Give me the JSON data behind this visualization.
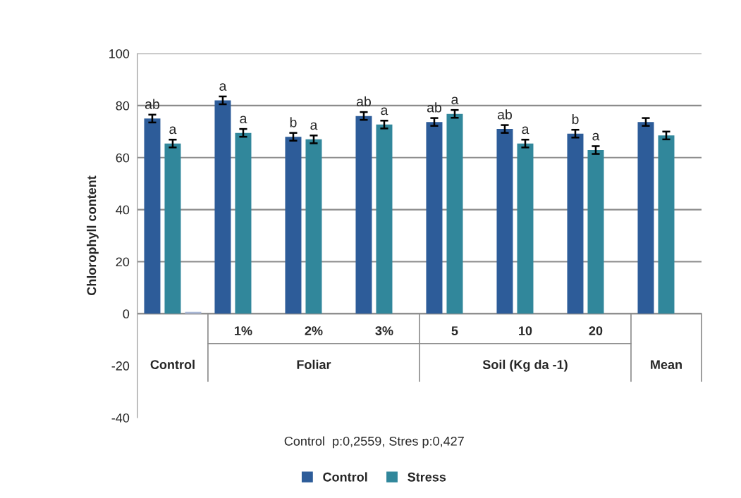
{
  "chart_data": {
    "type": "bar",
    "ylabel": "Chlorophyll content",
    "categories": [
      "Control",
      "1%",
      "2%",
      "3%",
      "5",
      "10",
      "20",
      "Mean"
    ],
    "series": [
      {
        "name": "Control",
        "color": "#2d5c99",
        "values": [
          75,
          82,
          68,
          76,
          73.7,
          71,
          69.2,
          73.7
        ],
        "errors": [
          1.5,
          1.5,
          1.5,
          1.5,
          1.5,
          1.5,
          1.5,
          1.5
        ],
        "value_labels": [
          "ab",
          "a",
          "b",
          "ab",
          "ab",
          "ab",
          "b",
          null
        ]
      },
      {
        "name": "Stress",
        "color": "#31879b",
        "values": [
          65.4,
          69.5,
          67,
          72.7,
          76.8,
          65.4,
          62.9,
          68.5
        ],
        "errors": [
          1.5,
          1.5,
          1.5,
          1.5,
          1.5,
          1.5,
          1.5,
          1.5
        ],
        "value_labels": [
          "a",
          "a",
          "a",
          "a",
          "a",
          "a",
          "a",
          null
        ]
      },
      {
        "color": "#a9b8d6",
        "values": [
          0.7,
          null,
          null,
          null,
          null,
          null,
          null,
          null
        ]
      }
    ],
    "ylim": [
      -40,
      100
    ],
    "yticks": [
      -40,
      -20,
      0,
      20,
      40,
      60,
      80,
      100
    ],
    "grid": "y",
    "legend": "bottom",
    "annotations": [
      "Foliar",
      "Soil (Kg da -1)",
      "Control  p:0,2559, Stres p:0,427"
    ]
  }
}
